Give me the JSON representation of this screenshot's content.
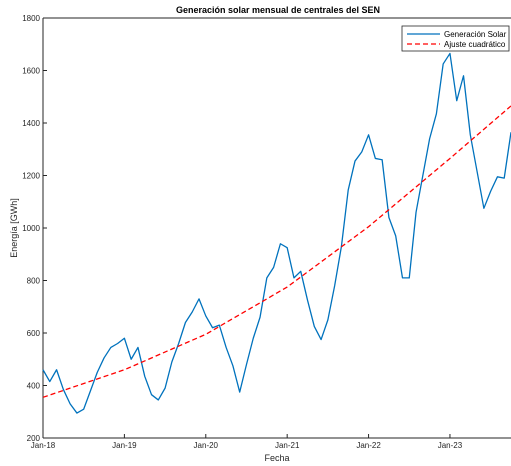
{
  "colors": {
    "series_solar": "#0072BD",
    "fit": "#FF0000",
    "axis": "#262626",
    "background": "#FFFFFF"
  },
  "chart_data": {
    "type": "line",
    "title": "Generación solar mensual de centrales del SEN",
    "xlabel": "Fecha",
    "ylabel": "Energía [GWh]",
    "ylim": [
      200,
      1800
    ],
    "yticks": [
      200,
      400,
      600,
      800,
      1000,
      1200,
      1400,
      1600,
      1800
    ],
    "xticks": [
      "Jan-18",
      "Jan-19",
      "Jan-20",
      "Jan-21",
      "Jan-22",
      "Jan-23"
    ],
    "xlim_months": [
      0,
      69
    ],
    "grid": false,
    "legend_position": "top-right",
    "series": [
      {
        "name": "Generación Solar",
        "style": "solid",
        "color": "#0072BD",
        "points": [
          [
            "2018-01",
            460
          ],
          [
            "2018-02",
            415
          ],
          [
            "2018-03",
            460
          ],
          [
            "2018-04",
            385
          ],
          [
            "2018-05",
            330
          ],
          [
            "2018-06",
            295
          ],
          [
            "2018-07",
            310
          ],
          [
            "2018-08",
            380
          ],
          [
            "2018-09",
            450
          ],
          [
            "2018-10",
            505
          ],
          [
            "2018-11",
            545
          ],
          [
            "2018-12",
            560
          ],
          [
            "2019-01",
            580
          ],
          [
            "2019-02",
            500
          ],
          [
            "2019-03",
            545
          ],
          [
            "2019-04",
            435
          ],
          [
            "2019-05",
            365
          ],
          [
            "2019-06",
            345
          ],
          [
            "2019-07",
            390
          ],
          [
            "2019-08",
            490
          ],
          [
            "2019-09",
            560
          ],
          [
            "2019-10",
            640
          ],
          [
            "2019-11",
            680
          ],
          [
            "2019-12",
            730
          ],
          [
            "2020-01",
            665
          ],
          [
            "2020-02",
            620
          ],
          [
            "2020-03",
            630
          ],
          [
            "2020-04",
            545
          ],
          [
            "2020-05",
            475
          ],
          [
            "2020-06",
            375
          ],
          [
            "2020-07",
            480
          ],
          [
            "2020-08",
            580
          ],
          [
            "2020-09",
            660
          ],
          [
            "2020-10",
            810
          ],
          [
            "2020-11",
            850
          ],
          [
            "2020-12",
            940
          ],
          [
            "2021-01",
            925
          ],
          [
            "2021-02",
            810
          ],
          [
            "2021-03",
            835
          ],
          [
            "2021-04",
            725
          ],
          [
            "2021-05",
            625
          ],
          [
            "2021-06",
            575
          ],
          [
            "2021-07",
            650
          ],
          [
            "2021-08",
            780
          ],
          [
            "2021-09",
            930
          ],
          [
            "2021-10",
            1145
          ],
          [
            "2021-11",
            1255
          ],
          [
            "2021-12",
            1290
          ],
          [
            "2022-01",
            1355
          ],
          [
            "2022-02",
            1265
          ],
          [
            "2022-03",
            1260
          ],
          [
            "2022-04",
            1040
          ],
          [
            "2022-05",
            970
          ],
          [
            "2022-06",
            810
          ],
          [
            "2022-07",
            810
          ],
          [
            "2022-08",
            1060
          ],
          [
            "2022-09",
            1200
          ],
          [
            "2022-10",
            1340
          ],
          [
            "2022-11",
            1435
          ],
          [
            "2022-12",
            1625
          ],
          [
            "2023-01",
            1665
          ],
          [
            "2023-02",
            1485
          ],
          [
            "2023-03",
            1580
          ],
          [
            "2023-04",
            1355
          ],
          [
            "2023-05",
            1215
          ],
          [
            "2023-06",
            1075
          ],
          [
            "2023-07",
            1140
          ],
          [
            "2023-08",
            1195
          ],
          [
            "2023-09",
            1190
          ],
          [
            "2023-10",
            1365
          ]
        ]
      },
      {
        "name": "Ajuste cuadrático",
        "style": "dashed",
        "color": "#FF0000",
        "points": [
          [
            "2018-01",
            355
          ],
          [
            "2019-01",
            460
          ],
          [
            "2020-01",
            595
          ],
          [
            "2021-01",
            775
          ],
          [
            "2022-01",
            1005
          ],
          [
            "2023-01",
            1265
          ],
          [
            "2023-10",
            1465
          ]
        ]
      }
    ]
  }
}
